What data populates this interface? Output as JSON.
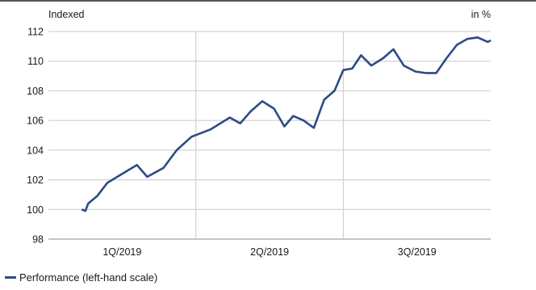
{
  "chart_data": {
    "type": "line",
    "y_axis_label": "Indexed",
    "y2_axis_label": "in %",
    "ylim": [
      98,
      112
    ],
    "yticks": [
      98,
      100,
      102,
      104,
      106,
      108,
      110,
      112
    ],
    "quarters": [
      "1Q/2019",
      "2Q/2019",
      "3Q/2019"
    ],
    "grid": true,
    "legend_position": "bottom-left",
    "series": [
      {
        "name": "Performance (left-hand scale)",
        "color": "#2e4a87",
        "values": [
          100.0,
          99.9,
          100.4,
          100.9,
          101.8,
          102.4,
          103.0,
          102.2,
          102.8,
          104.0,
          104.9,
          105.4,
          106.2,
          105.8,
          106.6,
          107.3,
          106.8,
          105.6,
          106.3,
          106.0,
          105.5,
          107.4,
          108.0,
          109.4,
          109.5,
          110.4,
          109.7,
          110.2,
          110.8,
          109.7,
          109.3,
          109.2,
          109.2,
          110.2,
          111.1,
          111.5,
          111.6,
          111.3,
          111.4
        ],
        "quarter_position": [
          0.225,
          0.25,
          0.27,
          0.33,
          0.4,
          0.5,
          0.6,
          0.67,
          0.78,
          0.87,
          0.97,
          1.1,
          1.23,
          1.3,
          1.37,
          1.45,
          1.53,
          1.6,
          1.66,
          1.73,
          1.8,
          1.87,
          1.94,
          2.0,
          2.06,
          2.12,
          2.19,
          2.27,
          2.34,
          2.41,
          2.49,
          2.56,
          2.63,
          2.7,
          2.77,
          2.84,
          2.91,
          2.98,
          3.0
        ]
      }
    ]
  }
}
